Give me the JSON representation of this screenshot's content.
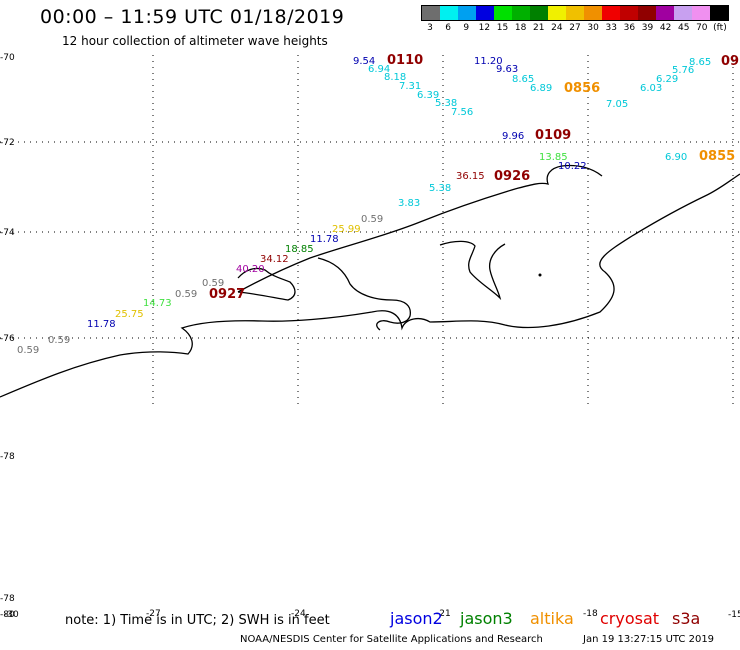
{
  "header": {
    "title": "00:00 – 11:59 UTC 01/18/2019",
    "subtitle": "12 hour collection of altimeter wave heights"
  },
  "legend": {
    "colors": [
      "#6e6e6e",
      "#00f0f0",
      "#00a0f0",
      "#0000e0",
      "#00e000",
      "#00b000",
      "#008000",
      "#f0f000",
      "#f0c000",
      "#f09000",
      "#f00000",
      "#c00000",
      "#900000",
      "#a000a0",
      "#c8a0f0",
      "#f090f0",
      "#000000"
    ],
    "labels": [
      "3",
      "6",
      "9",
      "12",
      "15",
      "18",
      "21",
      "24",
      "27",
      "30",
      "33",
      "36",
      "39",
      "42",
      "45",
      "70",
      "(ft)"
    ]
  },
  "axes": {
    "lat_labels": [
      "-70",
      "-72",
      "-74",
      "-76",
      "-78",
      "-78",
      "-80"
    ],
    "lon_labels": [
      "-30",
      "-27",
      "-24",
      "-21",
      "-18",
      "-15"
    ]
  },
  "observations": [
    {
      "text": "9.54",
      "color": "#0000b0"
    },
    {
      "text": "6.94",
      "color": "#00c8d8"
    },
    {
      "text": "8.18",
      "color": "#00c8d8"
    },
    {
      "text": "7.31",
      "color": "#00c8d8"
    },
    {
      "text": "6.39",
      "color": "#00c8d8"
    },
    {
      "text": "5.38",
      "color": "#00c8d8"
    },
    {
      "text": "7.56",
      "color": "#00c8d8"
    },
    {
      "text": "11.20",
      "color": "#0000b0"
    },
    {
      "text": "9.63",
      "color": "#0000b0"
    },
    {
      "text": "8.65",
      "color": "#00c8d8"
    },
    {
      "text": "6.89",
      "color": "#00c8d8"
    },
    {
      "text": "7.05",
      "color": "#00c8d8"
    },
    {
      "text": "6.03",
      "color": "#00c8d8"
    },
    {
      "text": "6.29",
      "color": "#00c8d8"
    },
    {
      "text": "5.76",
      "color": "#00c8d8"
    },
    {
      "text": "8.65",
      "color": "#00c8d8"
    },
    {
      "text": "9.96",
      "color": "#0000b0"
    },
    {
      "text": "13.85",
      "color": "#40e040"
    },
    {
      "text": "10.22",
      "color": "#0000b0"
    },
    {
      "text": "6.90",
      "color": "#00c8d8"
    },
    {
      "text": "36.15",
      "color": "#900000"
    },
    {
      "text": "5.38",
      "color": "#00c8d8"
    },
    {
      "text": "3.83",
      "color": "#00c8d8"
    },
    {
      "text": "0.59",
      "color": "#707070"
    },
    {
      "text": "25.99",
      "color": "#e0c000"
    },
    {
      "text": "11.78",
      "color": "#0000b0"
    },
    {
      "text": "18.85",
      "color": "#008000"
    },
    {
      "text": "34.12",
      "color": "#900000"
    },
    {
      "text": "40.20",
      "color": "#a000a0"
    },
    {
      "text": "0.59",
      "color": "#707070"
    },
    {
      "text": "0.59",
      "color": "#707070"
    },
    {
      "text": "14.73",
      "color": "#40e040"
    },
    {
      "text": "25.75",
      "color": "#e0c000"
    },
    {
      "text": "11.78",
      "color": "#0000b0"
    },
    {
      "text": "0.59",
      "color": "#707070"
    },
    {
      "text": "0.59",
      "color": "#707070"
    }
  ],
  "times": [
    {
      "text": "0110",
      "color": "#900000"
    },
    {
      "text": "0856",
      "color": "#f09000"
    },
    {
      "text": "09",
      "color": "#900000"
    },
    {
      "text": "0109",
      "color": "#900000"
    },
    {
      "text": "0855",
      "color": "#f09000"
    },
    {
      "text": "0926",
      "color": "#900000"
    },
    {
      "text": "0927",
      "color": "#900000"
    }
  ],
  "footer": {
    "note": "note: 1) Time is in UTC; 2) SWH is in feet",
    "satellites": [
      {
        "name": "jason2",
        "color": "#0000e0"
      },
      {
        "name": "jason3",
        "color": "#008000"
      },
      {
        "name": "altika",
        "color": "#f09000"
      },
      {
        "name": "cryosat",
        "color": "#e00000"
      },
      {
        "name": "s3a",
        "color": "#900000"
      }
    ],
    "credit": "NOAA/NESDIS Center for Satellite Applications and Research",
    "timestamp": "Jan 19 13:27:15 UTC 2019"
  }
}
